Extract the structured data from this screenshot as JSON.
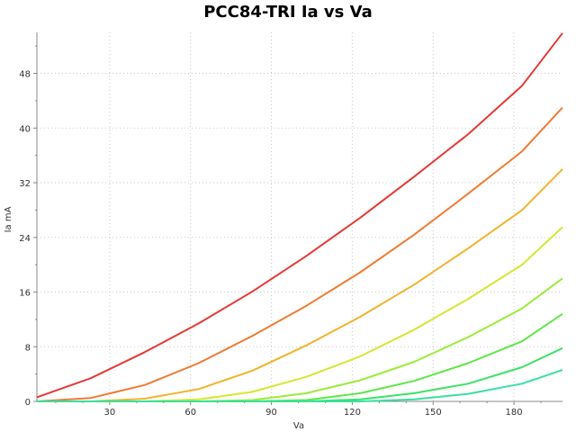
{
  "chart_data": {
    "type": "line",
    "title": "PCC84-TRI Ia vs Va",
    "xlabel": "Va",
    "ylabel": "Ia mA",
    "xlim": [
      3,
      198
    ],
    "ylim": [
      0,
      54
    ],
    "xticks": [
      "30",
      "60",
      "90",
      "120",
      "150",
      "180"
    ],
    "yticks": [
      "0",
      "8",
      "16",
      "24",
      "32",
      "40",
      "48"
    ],
    "grid": true,
    "legend": "none",
    "series": [
      {
        "color": "#e53935",
        "x": [
          3,
          23,
          43,
          63,
          83,
          103,
          123,
          143,
          163,
          183,
          198
        ],
        "y": [
          0.6,
          3.4,
          7.2,
          11.4,
          16.1,
          21.3,
          26.9,
          32.9,
          39.1,
          46.2,
          53.9
        ]
      },
      {
        "color": "#f07a33",
        "x": [
          3,
          23,
          43,
          63,
          83,
          103,
          123,
          143,
          163,
          183,
          198
        ],
        "y": [
          0,
          0.5,
          2.4,
          5.6,
          9.6,
          14.0,
          18.9,
          24.4,
          30.4,
          36.6,
          43.0
        ]
      },
      {
        "color": "#f0b32c",
        "x": [
          3,
          23,
          43,
          63,
          83,
          103,
          123,
          143,
          163,
          183,
          198
        ],
        "y": [
          0,
          0,
          0.4,
          1.8,
          4.5,
          8.2,
          12.4,
          17.1,
          22.4,
          28.0,
          34.0
        ]
      },
      {
        "color": "#d6e632",
        "x": [
          3,
          23,
          43,
          63,
          83,
          103,
          123,
          143,
          163,
          183,
          198
        ],
        "y": [
          0,
          0,
          0,
          0.3,
          1.4,
          3.6,
          6.6,
          10.5,
          15.0,
          20.0,
          25.5
        ]
      },
      {
        "color": "#9ceb3a",
        "x": [
          3,
          23,
          43,
          63,
          83,
          103,
          123,
          143,
          163,
          183,
          198
        ],
        "y": [
          0,
          0,
          0,
          0,
          0.2,
          1.2,
          3.1,
          5.8,
          9.4,
          13.6,
          18.0
        ]
      },
      {
        "color": "#5ee646",
        "x": [
          3,
          23,
          43,
          63,
          83,
          103,
          123,
          143,
          163,
          183,
          198
        ],
        "y": [
          0,
          0,
          0,
          0,
          0,
          0.2,
          1.2,
          3.0,
          5.6,
          8.8,
          12.8
        ]
      },
      {
        "color": "#3ee068",
        "x": [
          3,
          23,
          43,
          63,
          83,
          103,
          123,
          143,
          163,
          183,
          198
        ],
        "y": [
          0,
          0,
          0,
          0,
          0,
          0,
          0.3,
          1.2,
          2.6,
          5.0,
          7.8
        ]
      },
      {
        "color": "#38e0a0",
        "x": [
          3,
          23,
          43,
          63,
          83,
          103,
          123,
          143,
          163,
          183,
          198
        ],
        "y": [
          0,
          0,
          0,
          0,
          0,
          0,
          0,
          0.3,
          1.1,
          2.6,
          4.6
        ]
      }
    ]
  }
}
